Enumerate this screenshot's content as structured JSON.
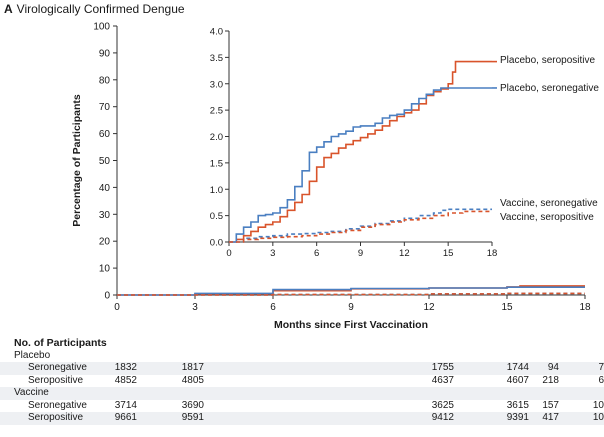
{
  "figure": {
    "panel": "A",
    "title": "Virologically Confirmed Dengue"
  },
  "chart_data": [
    {
      "type": "line",
      "name": "main",
      "xlabel": "Months since First Vaccination",
      "ylabel": "Percentage of Participants",
      "xlim": [
        0,
        18
      ],
      "ylim": [
        0,
        100
      ],
      "xticks": [
        "0",
        "3",
        "6",
        "9",
        "12",
        "15",
        "18"
      ],
      "yticks": [
        "0",
        "10",
        "20",
        "30",
        "40",
        "50",
        "60",
        "70",
        "80",
        "90",
        "100"
      ],
      "series": [
        {
          "name": "Placebo, seropositive",
          "color": "#d9542b",
          "dash": "solid",
          "x": [
            0,
            3,
            6,
            9,
            12,
            15,
            15.5,
            18
          ],
          "y": [
            0,
            0.4,
            1.6,
            2.3,
            2.6,
            3.0,
            3.4,
            3.4
          ]
        },
        {
          "name": "Placebo, seronegative",
          "color": "#4a7fc1",
          "dash": "solid",
          "x": [
            0,
            3,
            6,
            9,
            12,
            15,
            18
          ],
          "y": [
            0,
            0.6,
            2.0,
            2.4,
            2.6,
            2.9,
            2.9
          ]
        },
        {
          "name": "Vaccine, seronegative",
          "color": "#4a7fc1",
          "dash": "dashed",
          "x": [
            0,
            6,
            12,
            15,
            18
          ],
          "y": [
            0,
            0.2,
            0.4,
            0.6,
            0.6
          ]
        },
        {
          "name": "Vaccine, seropositive",
          "color": "#d9542b",
          "dash": "dashed",
          "x": [
            0,
            6,
            12,
            15,
            18
          ],
          "y": [
            0,
            0.2,
            0.4,
            0.6,
            0.6
          ]
        }
      ]
    },
    {
      "type": "line",
      "name": "inset",
      "xlim": [
        0,
        18
      ],
      "ylim": [
        0,
        4
      ],
      "xticks": [
        "0",
        "3",
        "6",
        "9",
        "12",
        "15",
        "18"
      ],
      "yticks": [
        "0.0",
        "0.5",
        "1.0",
        "1.5",
        "2.0",
        "2.5",
        "3.0",
        "3.5",
        "4.0"
      ],
      "series": [
        {
          "name": "Placebo, seropositive",
          "color": "#d9542b",
          "dash": "solid",
          "x": [
            0,
            0.5,
            1,
            1.5,
            2,
            2.5,
            3,
            3.5,
            4,
            4.5,
            5,
            5.5,
            6,
            6.5,
            7,
            7.5,
            8,
            8.5,
            9,
            9.5,
            10,
            10.5,
            11,
            11.5,
            12,
            12.5,
            13,
            13.5,
            14,
            14.5,
            15,
            15.3,
            15.5,
            16,
            16.5,
            17,
            17.5,
            18
          ],
          "y": [
            0,
            0.05,
            0.12,
            0.2,
            0.28,
            0.33,
            0.38,
            0.48,
            0.6,
            0.75,
            0.9,
            1.15,
            1.42,
            1.6,
            1.68,
            1.78,
            1.85,
            1.92,
            1.98,
            2.05,
            2.12,
            2.2,
            2.3,
            2.38,
            2.45,
            2.5,
            2.62,
            2.78,
            2.85,
            2.9,
            3.0,
            3.22,
            3.42,
            3.42,
            3.42,
            3.42,
            3.42,
            3.42
          ]
        },
        {
          "name": "Placebo, seronegative",
          "color": "#4a7fc1",
          "dash": "solid",
          "x": [
            0,
            0.5,
            1,
            1.5,
            2,
            2.5,
            3,
            3.5,
            4,
            4.5,
            5,
            5.5,
            6,
            6.5,
            7,
            7.5,
            8,
            8.5,
            9,
            9.5,
            10,
            10.5,
            11,
            11.5,
            12,
            12.5,
            13,
            13.5,
            14,
            14.5,
            15,
            15.5,
            16,
            16.5,
            17,
            17.5,
            18
          ],
          "y": [
            0,
            0.15,
            0.28,
            0.38,
            0.5,
            0.52,
            0.55,
            0.65,
            0.8,
            1.05,
            1.35,
            1.7,
            1.8,
            1.9,
            2.0,
            2.05,
            2.1,
            2.18,
            2.2,
            2.2,
            2.25,
            2.35,
            2.4,
            2.42,
            2.5,
            2.62,
            2.72,
            2.8,
            2.88,
            2.92,
            2.92,
            2.92,
            2.92,
            2.92,
            2.92,
            2.92,
            2.92
          ]
        },
        {
          "name": "Vaccine, seronegative",
          "color": "#4a7fc1",
          "dash": "dashed",
          "x": [
            0,
            1,
            2,
            3,
            4,
            5,
            6,
            7,
            8,
            9,
            10,
            11,
            12,
            13,
            14,
            14.5,
            15,
            16,
            17,
            18
          ],
          "y": [
            0,
            0.07,
            0.1,
            0.12,
            0.15,
            0.16,
            0.18,
            0.2,
            0.25,
            0.3,
            0.35,
            0.4,
            0.45,
            0.5,
            0.55,
            0.6,
            0.62,
            0.62,
            0.62,
            0.62
          ]
        },
        {
          "name": "Vaccine, seropositive",
          "color": "#d9542b",
          "dash": "dashed",
          "x": [
            0,
            1,
            2,
            3,
            4,
            5,
            6,
            7,
            8,
            9,
            10,
            11,
            12,
            13,
            14,
            15,
            16,
            17,
            18
          ],
          "y": [
            0,
            0.05,
            0.07,
            0.09,
            0.1,
            0.12,
            0.15,
            0.18,
            0.22,
            0.28,
            0.33,
            0.38,
            0.42,
            0.45,
            0.5,
            0.55,
            0.58,
            0.58,
            0.58
          ]
        }
      ]
    }
  ],
  "risk_table": {
    "title": "No. of Participants",
    "groups": [
      {
        "label": "Placebo",
        "rows": [
          {
            "label": "Seronegative",
            "values": [
              "1832",
              "1817",
              "1755",
              "1744",
              "94",
              "7"
            ]
          },
          {
            "label": "Seropositive",
            "values": [
              "4852",
              "4805",
              "4637",
              "4607",
              "218",
              "6"
            ]
          }
        ]
      },
      {
        "label": "Vaccine",
        "rows": [
          {
            "label": "Seronegative",
            "values": [
              "3714",
              "3690",
              "3625",
              "3615",
              "157",
              "10"
            ]
          },
          {
            "label": "Seropositive",
            "values": [
              "9661",
              "9591",
              "9412",
              "9391",
              "417",
              "10"
            ]
          }
        ]
      }
    ]
  }
}
